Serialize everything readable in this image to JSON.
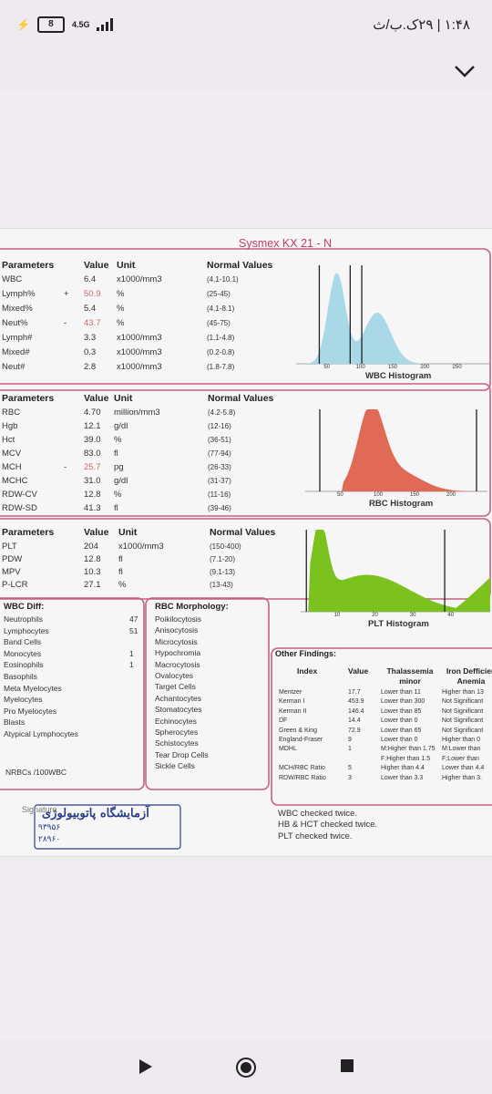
{
  "status": {
    "network": "4.5G",
    "battery": "8",
    "time_rtl": "۱:۴۸ | ۲۹ک.ب/ث"
  },
  "report": {
    "title": "Sysmex KX 21 - N",
    "wbc": {
      "headers": [
        "Parameters",
        "Value",
        "Unit",
        "Normal Values"
      ],
      "rows": [
        {
          "name": "WBC",
          "flag": "",
          "value": "6.4",
          "unit": "x1000/mm3",
          "normal": "(4.1-10.1)"
        },
        {
          "name": "Lymph%",
          "flag": "+",
          "value": "50.9",
          "unit": "%",
          "normal": "(25-45)",
          "abn": true
        },
        {
          "name": "Mixed%",
          "flag": "",
          "value": "5.4",
          "unit": "%",
          "normal": "(4.1-8.1)"
        },
        {
          "name": "Neut%",
          "flag": "-",
          "value": "43.7",
          "unit": "%",
          "normal": "(45-75)",
          "abn": true
        },
        {
          "name": "Lymph#",
          "flag": "",
          "value": "3.3",
          "unit": "x1000/mm3",
          "normal": "(1.1-4.8)"
        },
        {
          "name": "Mixed#",
          "flag": "",
          "value": "0.3",
          "unit": "x1000/mm3",
          "normal": "(0.2-0.8)"
        },
        {
          "name": "Neut#",
          "flag": "",
          "value": "2.8",
          "unit": "x1000/mm3",
          "normal": "(1.8-7.8)"
        }
      ]
    },
    "rbc": {
      "headers": [
        "Parameters",
        "Value",
        "Unit",
        "Normal Values"
      ],
      "rows": [
        {
          "name": "RBC",
          "flag": "",
          "value": "4.70",
          "unit": "million/mm3",
          "normal": "(4.2-5.8)"
        },
        {
          "name": "Hgb",
          "flag": "",
          "value": "12.1",
          "unit": "g/dl",
          "normal": "(12-16)"
        },
        {
          "name": "Hct",
          "flag": "",
          "value": "39.0",
          "unit": "%",
          "normal": "(36-51)"
        },
        {
          "name": "MCV",
          "flag": "",
          "value": "83.0",
          "unit": "fl",
          "normal": "(77-94)"
        },
        {
          "name": "MCH",
          "flag": "-",
          "value": "25.7",
          "unit": "pg",
          "normal": "(26-33)",
          "abn": true
        },
        {
          "name": "MCHC",
          "flag": "",
          "value": "31.0",
          "unit": "g/dl",
          "normal": "(31-37)"
        },
        {
          "name": "RDW-CV",
          "flag": "",
          "value": "12.8",
          "unit": "%",
          "normal": "(11-16)"
        },
        {
          "name": "RDW-SD",
          "flag": "",
          "value": "41.3",
          "unit": "fl",
          "normal": "(39-46)"
        }
      ]
    },
    "plt": {
      "headers": [
        "Parameters",
        "Value",
        "Unit",
        "Normal Values"
      ],
      "rows": [
        {
          "name": "PLT",
          "flag": "",
          "value": "204",
          "unit": "x1000/mm3",
          "normal": "(150-400)"
        },
        {
          "name": "PDW",
          "flag": "",
          "value": "12.8",
          "unit": "fl",
          "normal": "(7.1-20)"
        },
        {
          "name": "MPV",
          "flag": "",
          "value": "10.3",
          "unit": "fl",
          "normal": "(9.1-13)"
        },
        {
          "name": "P-LCR",
          "flag": "",
          "value": "27.1",
          "unit": "%",
          "normal": "(13-43)"
        }
      ]
    },
    "hist": {
      "wbc": {
        "label": "WBC Histogram",
        "ticks": [
          "50",
          "100",
          "150",
          "200",
          "250"
        ]
      },
      "rbc": {
        "label": "RBC Histogram",
        "ticks": [
          "50",
          "100",
          "150",
          "200"
        ]
      },
      "plt": {
        "label": "PLT Histogram",
        "ticks": [
          "10",
          "20",
          "30",
          "40"
        ]
      }
    },
    "diff": {
      "title": "WBC Diff:",
      "rows": [
        {
          "name": "Neutrophils",
          "value": "47"
        },
        {
          "name": "Lymphocytes",
          "value": "51"
        },
        {
          "name": "Band Cells",
          "value": ""
        },
        {
          "name": "Monocytes",
          "value": "1"
        },
        {
          "name": "Eosinophils",
          "value": "1"
        },
        {
          "name": "Basophils",
          "value": ""
        },
        {
          "name": "Meta Myelocytes",
          "value": ""
        },
        {
          "name": "Myelocytes",
          "value": ""
        },
        {
          "name": "Pro Myelocytes",
          "value": ""
        },
        {
          "name": "Blasts",
          "value": ""
        },
        {
          "name": "Atypical Lymphocytes",
          "value": ""
        }
      ],
      "nrbc": "NRBCs /100WBC"
    },
    "morph": {
      "title": "RBC Morphology:",
      "items": [
        "Poikilocytosis",
        "Anisocytosis",
        "Microcytosis",
        "Hypochromia",
        "Macrocytosis",
        "Ovalocytes",
        "Target Cells",
        "Achantocytes",
        "Stomatocytes",
        "Echinocytes",
        "Spherocytes",
        "Schistocytes",
        "Tear Drop Cells",
        "Sickle Cells"
      ]
    },
    "other": {
      "title": "Other Findings:",
      "headers": [
        "Index",
        "Value",
        "Thalassemia minor",
        "Iron Defficien Anemia"
      ],
      "rows": [
        {
          "index": "Mentzer",
          "value": "17.7",
          "thal": "Lower than 11",
          "iron": "Higher than 13"
        },
        {
          "index": "Kerman I",
          "value": "453.9",
          "thal": "Lower than 300",
          "iron": "Not Significant"
        },
        {
          "index": "Kerman II",
          "value": "146.4",
          "thal": "Lower than 85",
          "iron": "Not Significant"
        },
        {
          "index": "DF",
          "value": "14.4",
          "thal": "Lower than 0",
          "iron": "Not Significant"
        },
        {
          "index": "Green & King",
          "value": "72.9",
          "thal": "Lower than 65",
          "iron": "Not Significant"
        },
        {
          "index": "England-Fraser",
          "value": "9",
          "thal": "Lower than 0",
          "iron": "Higher than 0"
        },
        {
          "index": "MDHL",
          "value": "1",
          "thal": "M:Higher than 1.75",
          "iron": "M:Lower than"
        },
        {
          "index": "",
          "value": "",
          "thal": "F:Higher than 1.5",
          "iron": "F:Lower than"
        },
        {
          "index": "MCH/RBC Ratio",
          "value": "5",
          "thal": "Higher than 4.4",
          "iron": "Lower than 4.4"
        },
        {
          "index": "RDW/RBC Ratio",
          "value": "3",
          "thal": "Lower than 3.3",
          "iron": "Higher than 3."
        }
      ]
    },
    "notes": [
      "WBC checked twice.",
      "HB & HCT checked twice.",
      "PLT checked twice."
    ],
    "signature": "Signature",
    "stamp_text": "آزمایشگاه پاتوبیولوژی",
    "stamp_sub1": "۹۳۹۵۶",
    "stamp_sub2": "۲۸۹۶۰"
  },
  "colors": {
    "frame": "#c4627f",
    "wbc_hist": "#a9d8e6",
    "rbc_hist": "#e06a55",
    "plt_hist": "#7cc21e",
    "title": "#c43b66"
  }
}
